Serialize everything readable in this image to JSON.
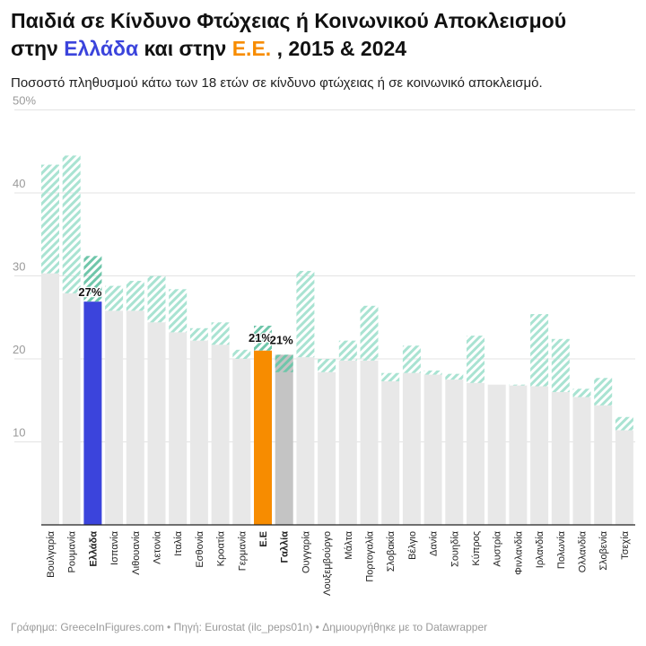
{
  "title": {
    "line1": "Παιδιά σε Κίνδυνο Φτώχειας ή Κοινωνικού Αποκλεισμού",
    "line2_prefix": "στην ",
    "greece": "Ελλάδα",
    "middle": " και στην ",
    "eu": "Ε.Ε.",
    "suffix": " , 2015 & 2024"
  },
  "subtitle": "Ποσοστό πληθυσμού κάτω των 18 ετών σε κίνδυνο φτώχειας ή σε κοινωνικό αποκλεισμό.",
  "footer": "Γράφημα: GreeceInFigures.com • Πηγή: Eurostat (ilc_peps01n) • Δημιουργήθηκε με το Datawrapper",
  "colors": {
    "greece": "#3b44dc",
    "eu": "#f78c00",
    "france": "#c4c4c4",
    "default": "#e8e8e8",
    "hatch": "#a9e3d2",
    "hatch_highlight": "#6fc6aa"
  },
  "chart_data": {
    "type": "bar",
    "ylim": [
      0,
      50
    ],
    "yticks": [
      {
        "value": 10,
        "label": "10"
      },
      {
        "value": 20,
        "label": "20"
      },
      {
        "value": 30,
        "label": "30"
      },
      {
        "value": 40,
        "label": "40"
      },
      {
        "value": 50,
        "label": "50%"
      }
    ],
    "grid": true,
    "categories": [
      "Βουλγαρία",
      "Ρουμανία",
      "Ελλάδα",
      "Ισπανία",
      "Λιθουανία",
      "Λετονία",
      "Ιταλία",
      "Εσθονία",
      "Κροατία",
      "Γερμανία",
      "Ε.Ε",
      "Γαλλία",
      "Ουγγαρία",
      "Λουξεμβούργο",
      "Μάλτα",
      "Πορτογαλία",
      "Σλοβακία",
      "Βέλγιο",
      "Δανία",
      "Σουηδία",
      "Κύπρος",
      "Αυστρία",
      "Φινλανδία",
      "Ιρλανδία",
      "Πολωνία",
      "Ολλανδία",
      "Σλοβενία",
      "Τσεχία"
    ],
    "highlighted": [
      "Ελλάδα",
      "Ε.Ε",
      "Γαλλία"
    ],
    "series": [
      {
        "year": "2024",
        "style": "solid",
        "values": [
          30.3,
          27.9,
          26.9,
          25.8,
          25.8,
          24.4,
          23.2,
          22.2,
          21.7,
          20.0,
          21.0,
          20.5,
          20.2,
          18.4,
          19.8,
          19.8,
          17.3,
          18.3,
          18.1,
          17.5,
          17.1,
          16.9,
          16.8,
          16.7,
          16.0,
          15.4,
          14.4,
          11.4
        ]
      },
      {
        "year": "2015",
        "style": "hatched",
        "values": [
          43.4,
          44.5,
          32.4,
          28.8,
          29.4,
          30.0,
          28.4,
          23.7,
          24.4,
          21.1,
          24.0,
          18.4,
          30.6,
          20.0,
          22.2,
          26.4,
          18.3,
          21.6,
          18.6,
          18.2,
          22.8,
          16.9,
          16.9,
          25.4,
          22.4,
          16.4,
          17.7,
          13.0
        ]
      }
    ],
    "data_labels": [
      {
        "category": "Ελλάδα",
        "text": "27%"
      },
      {
        "category": "Ε.Ε",
        "text": "21%"
      },
      {
        "category": "Γαλλία",
        "text": "21%"
      }
    ]
  }
}
